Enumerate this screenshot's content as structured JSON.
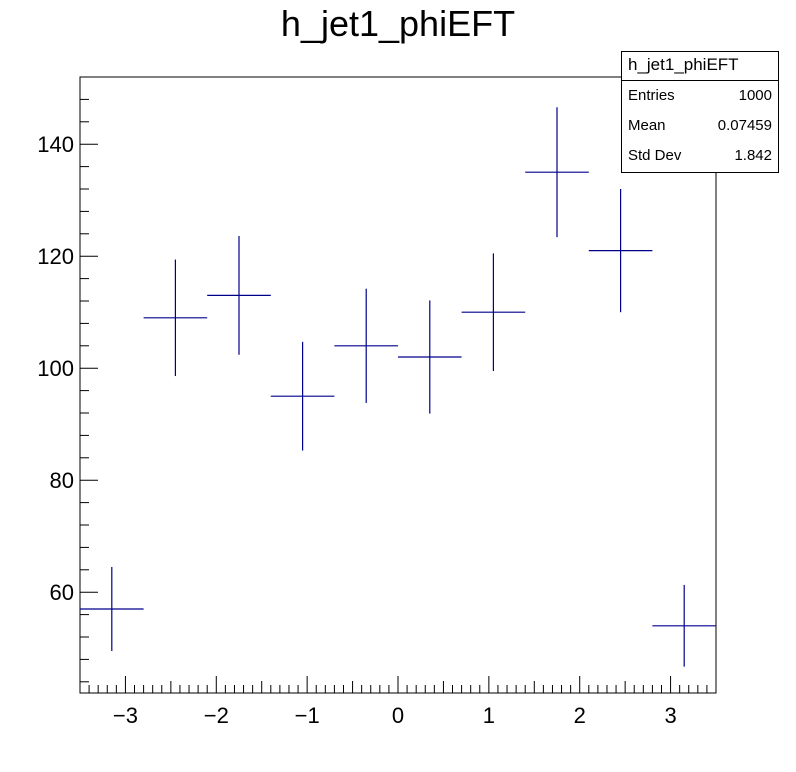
{
  "chart_data": {
    "type": "scatter",
    "title": "h_jet1_phiEFT",
    "xlabel": "",
    "ylabel": "",
    "xlim": [
      -3.5,
      3.5
    ],
    "ylim": [
      42,
      152
    ],
    "x_ticks": [
      -3,
      -2,
      -1,
      0,
      1,
      2,
      3
    ],
    "x_tick_labels": [
      "−3",
      "−2",
      "−1",
      "0",
      "1",
      "2",
      "3"
    ],
    "y_ticks": [
      60,
      80,
      100,
      120,
      140
    ],
    "y_tick_labels": [
      "60",
      "80",
      "100",
      "120",
      "140"
    ],
    "grid": false,
    "bin_width": 0.7,
    "points": [
      {
        "x": -3.15,
        "y": 57,
        "err": 7.5
      },
      {
        "x": -2.45,
        "y": 109,
        "err": 10.4
      },
      {
        "x": -1.75,
        "y": 113,
        "err": 10.6
      },
      {
        "x": -1.05,
        "y": 95,
        "err": 9.7
      },
      {
        "x": -0.35,
        "y": 104,
        "err": 10.2
      },
      {
        "x": 0.35,
        "y": 102,
        "err": 10.1
      },
      {
        "x": 1.05,
        "y": 110,
        "err": 10.5
      },
      {
        "x": 1.75,
        "y": 135,
        "err": 11.6
      },
      {
        "x": 2.45,
        "y": 121,
        "err": 11.0
      },
      {
        "x": 3.15,
        "y": 54,
        "err": 7.3
      }
    ],
    "series_color": "#00008b"
  },
  "stats_box": {
    "title": "h_jet1_phiEFT",
    "entries_label": "Entries",
    "entries_value": "1000",
    "mean_label": "Mean",
    "mean_value": "0.07459",
    "stddev_label": "Std Dev",
    "stddev_value": "1.842"
  }
}
